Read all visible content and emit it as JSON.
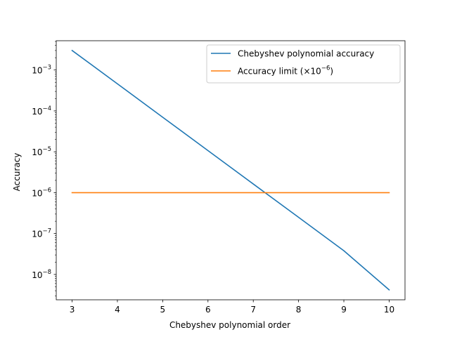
{
  "chart_data": {
    "type": "line",
    "title": "",
    "xlabel": "Chebyshev polynomial order",
    "ylabel": "Accuracy",
    "yscale": "log",
    "xlim": [
      2.65,
      10.35
    ],
    "ylim": [
      2.4e-09,
      0.0052
    ],
    "x": [
      3,
      4,
      5,
      6,
      7,
      8,
      9,
      10
    ],
    "x_ticks": [
      "3",
      "4",
      "5",
      "6",
      "7",
      "8",
      "9",
      "10"
    ],
    "y_ticks": [
      {
        "value": 0.001,
        "base": "10",
        "exp": "−3"
      },
      {
        "value": 0.0001,
        "base": "10",
        "exp": "−4"
      },
      {
        "value": 1e-05,
        "base": "10",
        "exp": "−5"
      },
      {
        "value": 1e-06,
        "base": "10",
        "exp": "−6"
      },
      {
        "value": 1e-07,
        "base": "10",
        "exp": "−7"
      },
      {
        "value": 1e-08,
        "base": "10",
        "exp": "−8"
      }
    ],
    "series": [
      {
        "name": "Chebyshev polynomial accuracy",
        "color": "#1f77b4",
        "values": [
          0.003,
          0.00046,
          7e-05,
          1.07e-05,
          1.63e-06,
          2.5e-07,
          3.8e-08,
          4.2e-09
        ]
      },
      {
        "name": "Accuracy limit (×10",
        "name_sup": "−6",
        "name_suffix": ")",
        "color": "#ff7f0e",
        "values": [
          1e-06,
          1e-06,
          1e-06,
          1e-06,
          1e-06,
          1e-06,
          1e-06,
          1e-06
        ]
      }
    ],
    "grid": false,
    "legend_position": "top-right"
  }
}
